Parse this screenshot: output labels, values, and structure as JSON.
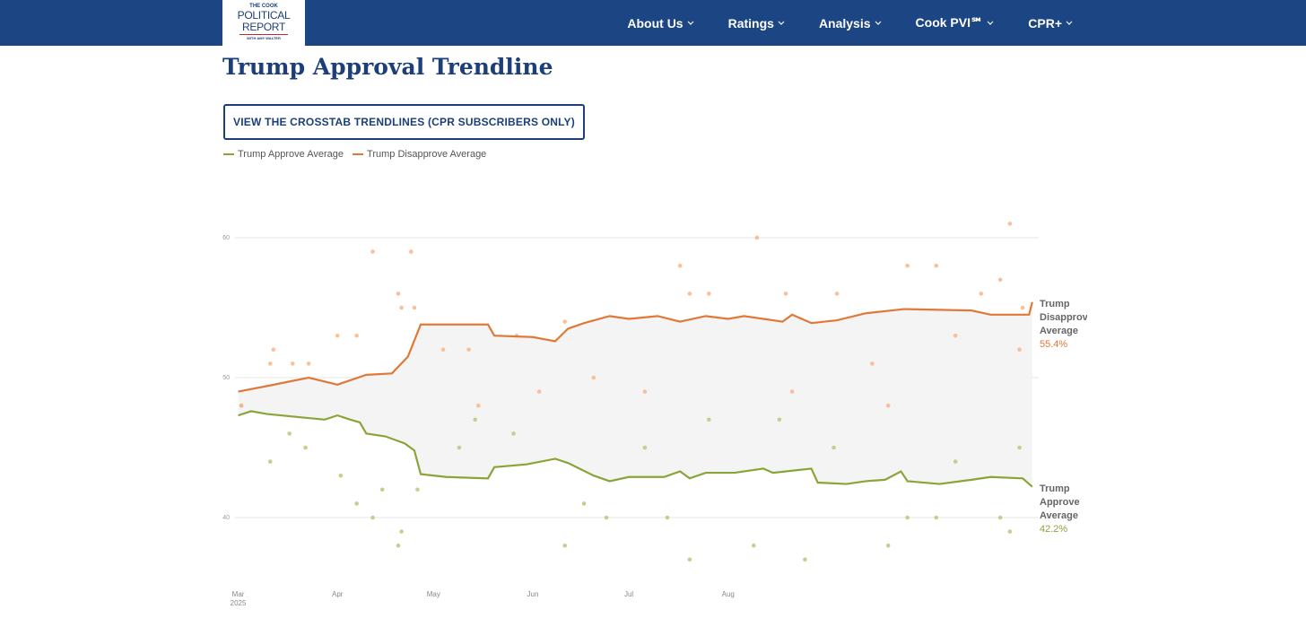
{
  "nav": {
    "logo": [
      "THE COOK",
      "POLITICAL",
      "REPORT",
      "WITH AMY WALTER"
    ],
    "items": [
      "About Us",
      "Ratings",
      "Analysis",
      "Cook PVI℠",
      "CPR+"
    ]
  },
  "page": {
    "title": "Trump Approval Trendline",
    "button": "VIEW THE CROSSTAB TRENDLINES (CPR SUBSCRIBERS ONLY)"
  },
  "chart_data": {
    "type": "line",
    "grid": true,
    "xlim": [
      "2025-02-28",
      "2025-11-06"
    ],
    "xticks": [
      {
        "value": "2025-03-01",
        "label": "Mar 2025"
      },
      {
        "value": "2025-04-01",
        "label": "Apr"
      },
      {
        "value": "2025-05-01",
        "label": "May"
      },
      {
        "value": "2025-06-01",
        "label": "Jun"
      },
      {
        "value": "2025-07-01",
        "label": "Jul"
      },
      {
        "value": "2025-08-01",
        "label": "Aug"
      }
    ],
    "ylim": [
      36,
      62
    ],
    "yticks": [
      40,
      50,
      60
    ],
    "series": [
      {
        "name": "Trump Approve Average",
        "color": "#8ba43a",
        "point_color": "#b2cc7a",
        "last_label": "42.2%",
        "x": [
          "2025-03-01",
          "2025-03-05",
          "2025-03-10",
          "2025-03-19",
          "2025-03-28",
          "2025-04-01",
          "2025-04-05",
          "2025-04-08",
          "2025-04-10",
          "2025-04-16",
          "2025-04-22",
          "2025-04-25",
          "2025-04-27",
          "2025-05-05",
          "2025-05-18",
          "2025-05-20",
          "2025-05-30",
          "2025-06-08",
          "2025-06-12",
          "2025-06-20",
          "2025-06-25",
          "2025-07-01",
          "2025-07-12",
          "2025-07-17",
          "2025-07-20",
          "2025-07-25",
          "2025-08-03",
          "2025-08-12",
          "2025-08-15",
          "2025-08-27",
          "2025-08-29",
          "2025-09-07",
          "2025-09-13",
          "2025-09-19",
          "2025-09-24",
          "2025-09-26",
          "2025-10-06",
          "2025-10-16",
          "2025-10-22",
          "2025-11-01",
          "2025-11-04"
        ],
        "values": [
          47.3,
          47.6,
          47.4,
          47.2,
          47.0,
          47.3,
          47.0,
          46.8,
          46.0,
          45.8,
          45.3,
          44.8,
          43.1,
          42.9,
          42.8,
          43.6,
          43.8,
          44.2,
          43.9,
          43.0,
          42.6,
          42.9,
          42.9,
          43.3,
          42.8,
          43.2,
          43.2,
          43.5,
          43.2,
          43.5,
          42.5,
          42.4,
          42.6,
          42.7,
          43.3,
          42.6,
          42.4,
          42.7,
          42.9,
          42.8,
          42.2
        ],
        "polls": {
          "x": [
            "2025-03-02",
            "2025-03-11",
            "2025-03-17",
            "2025-03-22",
            "2025-04-02",
            "2025-04-07",
            "2025-04-12",
            "2025-04-15",
            "2025-04-20",
            "2025-04-21",
            "2025-04-26",
            "2025-05-09",
            "2025-05-14",
            "2025-05-26",
            "2025-06-11",
            "2025-06-17",
            "2025-06-24",
            "2025-07-06",
            "2025-07-13",
            "2025-07-20",
            "2025-07-26",
            "2025-08-09",
            "2025-08-17",
            "2025-08-25",
            "2025-09-03",
            "2025-09-20",
            "2025-09-26",
            "2025-10-05",
            "2025-10-11",
            "2025-10-25",
            "2025-10-28",
            "2025-10-31"
          ],
          "values": [
            48,
            44,
            46,
            45,
            43,
            41,
            40,
            42,
            38,
            39,
            42,
            45,
            47,
            46,
            38,
            41,
            40,
            45,
            40,
            37,
            47,
            38,
            47,
            37,
            45,
            38,
            40,
            40,
            44,
            40,
            39,
            45
          ]
        }
      },
      {
        "name": "Trump Disapprove Average",
        "color": "#e07838",
        "point_color": "#f9b48a",
        "last_label": "55.4%",
        "x": [
          "2025-03-01",
          "2025-03-10",
          "2025-03-23",
          "2025-04-01",
          "2025-04-10",
          "2025-04-18",
          "2025-04-23",
          "2025-04-27",
          "2025-05-18",
          "2025-05-20",
          "2025-06-01",
          "2025-06-08",
          "2025-06-12",
          "2025-06-17",
          "2025-06-25",
          "2025-07-01",
          "2025-07-10",
          "2025-07-17",
          "2025-07-25",
          "2025-08-01",
          "2025-08-06",
          "2025-08-18",
          "2025-08-21",
          "2025-08-27",
          "2025-09-04",
          "2025-09-13",
          "2025-09-25",
          "2025-10-16",
          "2025-10-22",
          "2025-11-03",
          "2025-11-04"
        ],
        "values": [
          49.0,
          49.4,
          50.0,
          49.5,
          50.2,
          50.3,
          51.5,
          53.8,
          53.8,
          53.0,
          52.9,
          52.6,
          53.5,
          53.9,
          54.4,
          54.2,
          54.4,
          54.0,
          54.4,
          54.2,
          54.4,
          54.0,
          54.5,
          53.9,
          54.1,
          54.6,
          54.9,
          54.8,
          54.5,
          54.5,
          55.4
        ],
        "polls": {
          "x": [
            "2025-03-02",
            "2025-03-11",
            "2025-03-12",
            "2025-03-18",
            "2025-03-23",
            "2025-04-01",
            "2025-04-07",
            "2025-04-12",
            "2025-04-20",
            "2025-04-21",
            "2025-04-24",
            "2025-04-25",
            "2025-05-04",
            "2025-05-12",
            "2025-05-15",
            "2025-05-27",
            "2025-06-03",
            "2025-06-11",
            "2025-06-20",
            "2025-07-06",
            "2025-07-17",
            "2025-07-20",
            "2025-07-26",
            "2025-08-10",
            "2025-08-19",
            "2025-08-21",
            "2025-09-04",
            "2025-09-15",
            "2025-09-20",
            "2025-09-26",
            "2025-10-05",
            "2025-10-11",
            "2025-10-19",
            "2025-10-25",
            "2025-10-28",
            "2025-10-31",
            "2025-11-01"
          ],
          "values": [
            48,
            51,
            52,
            51,
            51,
            53,
            53,
            59,
            56,
            55,
            59,
            55,
            52,
            52,
            48,
            53,
            49,
            54,
            50,
            49,
            58,
            56,
            56,
            60,
            56,
            49,
            56,
            51,
            48,
            58,
            58,
            53,
            56,
            57,
            61,
            52,
            55
          ]
        }
      }
    ]
  }
}
